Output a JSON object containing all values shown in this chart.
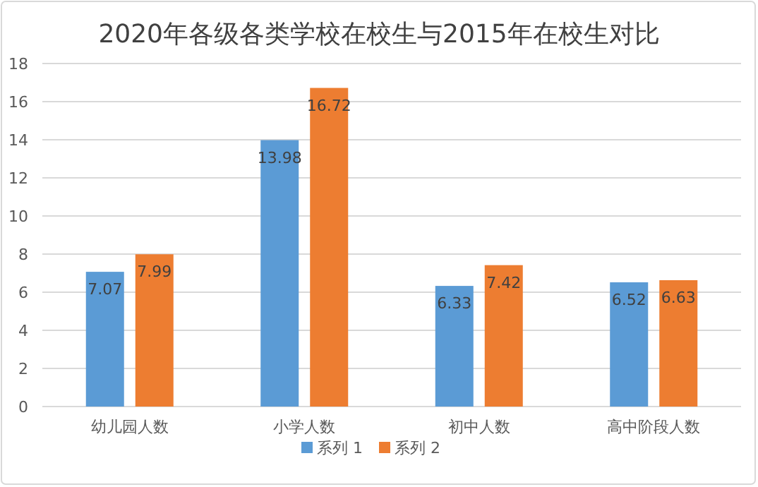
{
  "chart_data": {
    "type": "bar",
    "title": "2020年各级各类学校在校生与2015年在校生对比",
    "categories": [
      "幼儿园人数",
      "小学人数",
      "初中人数",
      "高中阶段人数"
    ],
    "series": [
      {
        "name": "系列 1",
        "color": "#5b9bd5",
        "values": [
          7.07,
          13.98,
          6.33,
          6.52
        ]
      },
      {
        "name": "系列 2",
        "color": "#ed7d31",
        "values": [
          7.99,
          16.72,
          7.42,
          6.63
        ]
      }
    ],
    "ylim": [
      0,
      18
    ],
    "yticks": [
      0,
      2,
      4,
      6,
      8,
      10,
      12,
      14,
      16,
      18
    ],
    "grid": "y",
    "legend": "bottom",
    "data_labels": true
  }
}
